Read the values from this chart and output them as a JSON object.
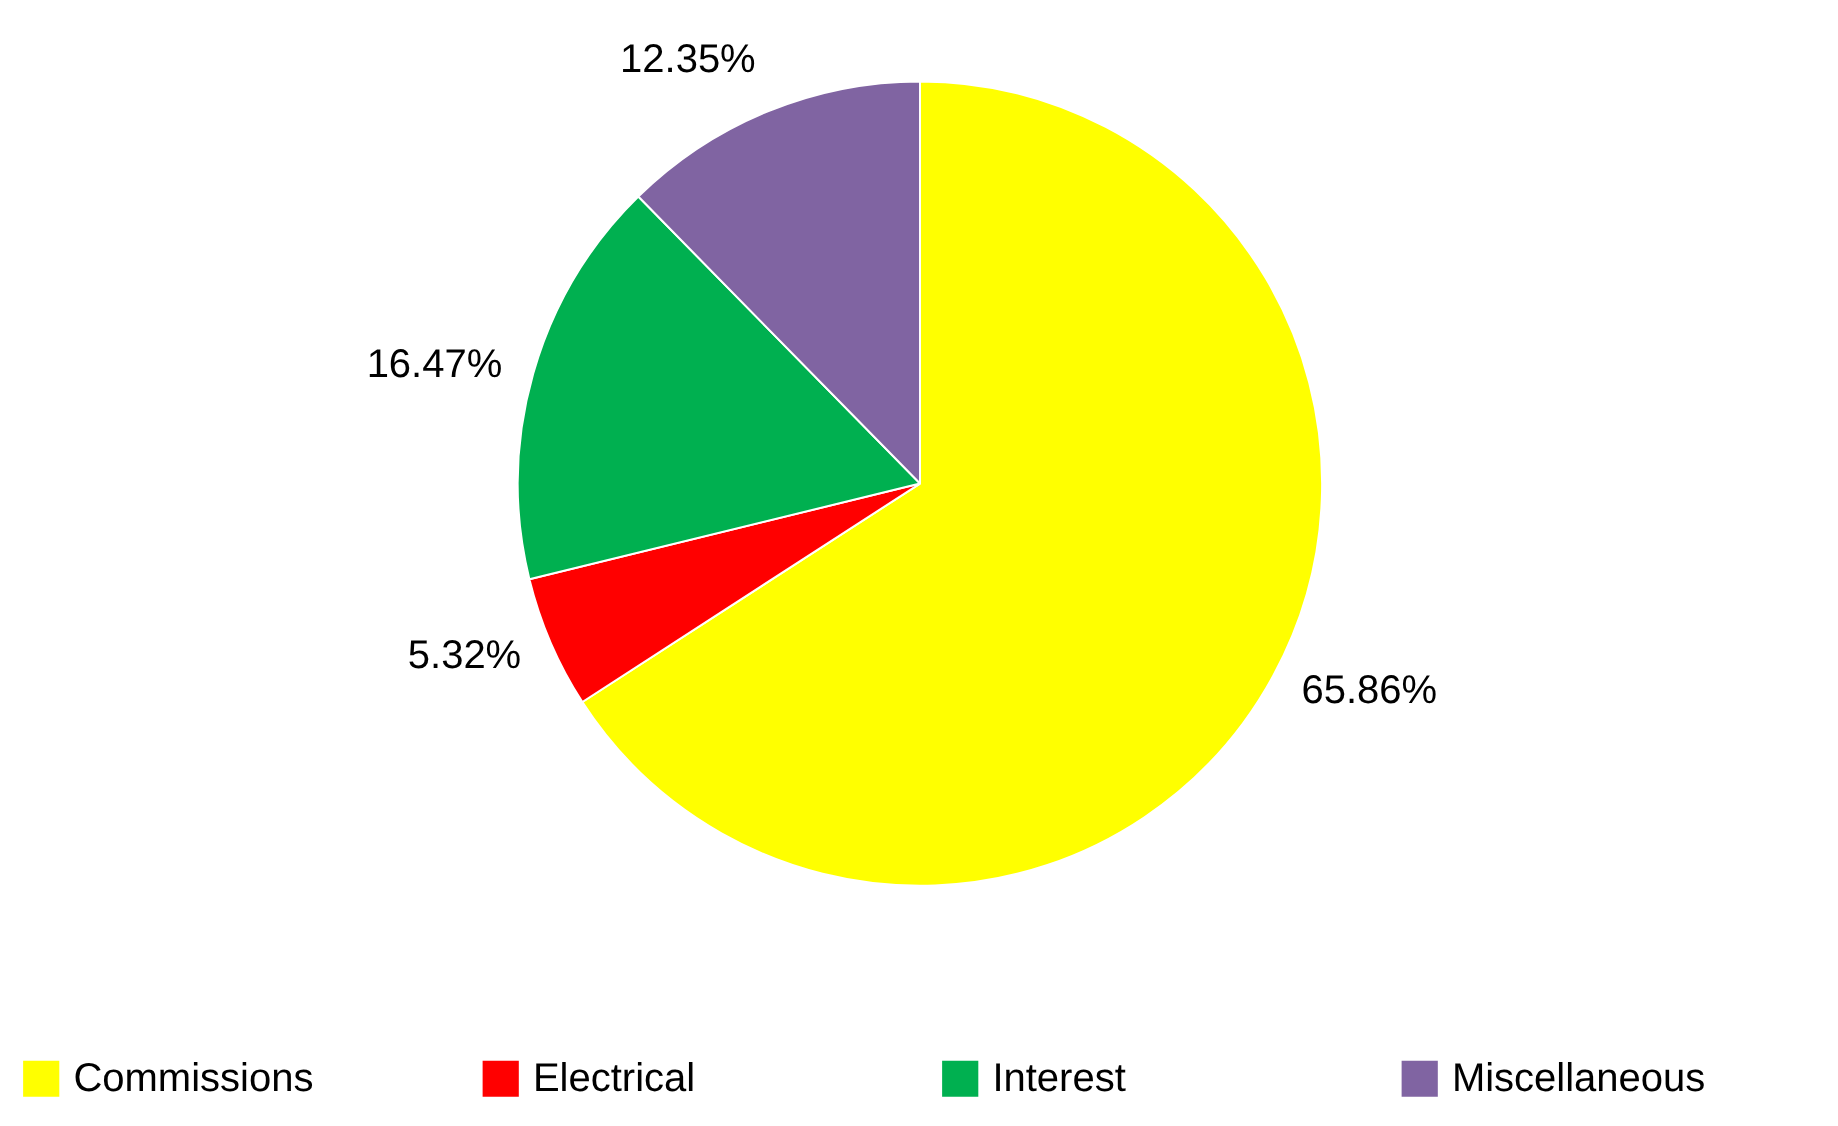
{
  "chart_data": {
    "type": "pie",
    "categories": [
      "Commissions",
      "Electrical",
      "Interest",
      "Miscellaneous"
    ],
    "values": [
      65.86,
      5.32,
      16.47,
      12.35
    ],
    "value_labels": [
      "65.86%",
      "5.32%",
      "16.47%",
      "12.35%"
    ],
    "colors": [
      "#ffff00",
      "#ff0000",
      "#00b050",
      "#8064a2"
    ],
    "legend": "bottom"
  }
}
